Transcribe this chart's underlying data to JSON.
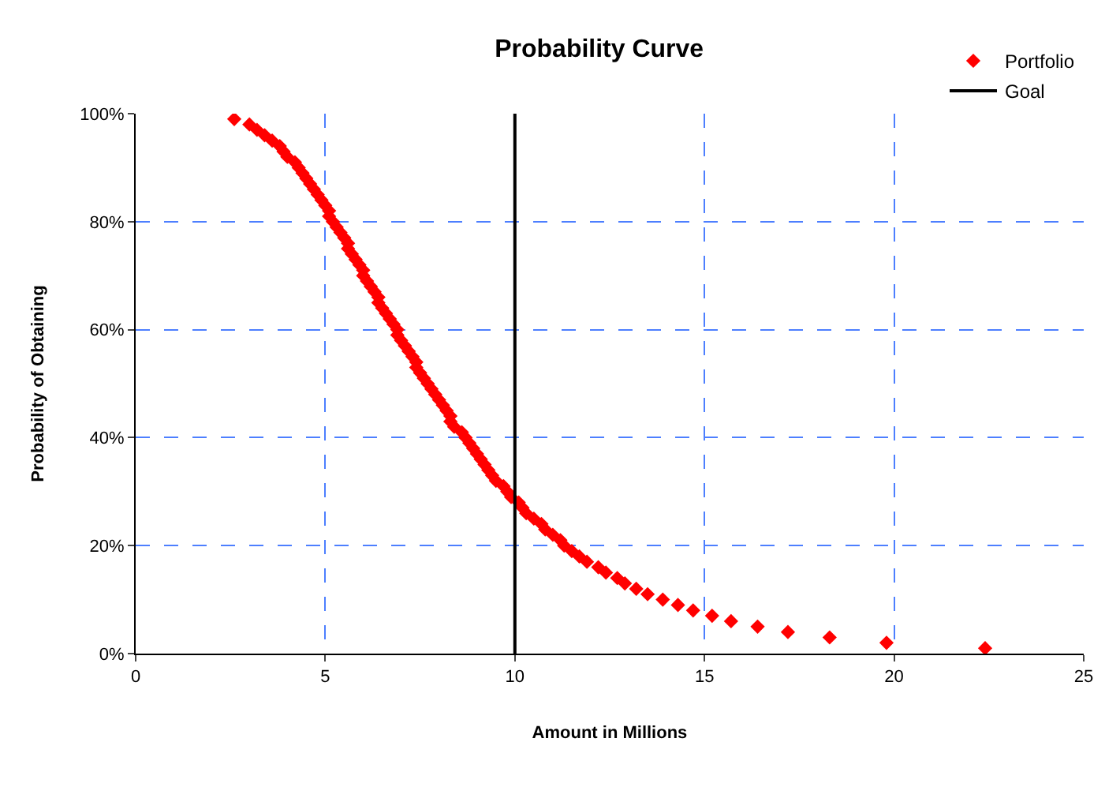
{
  "chart_data": {
    "type": "scatter",
    "title": "Probability Curve",
    "xlabel": "Amount in Millions",
    "ylabel": "Probability of Obtaining",
    "x": [
      2.6,
      3.0,
      3.2,
      3.4,
      3.6,
      3.8,
      3.9,
      4.0,
      4.2,
      4.3,
      4.4,
      4.5,
      4.6,
      4.7,
      4.8,
      4.9,
      5.0,
      5.1,
      5.1,
      5.2,
      5.3,
      5.4,
      5.5,
      5.6,
      5.6,
      5.7,
      5.8,
      5.9,
      6.0,
      6.0,
      6.1,
      6.2,
      6.3,
      6.4,
      6.4,
      6.5,
      6.6,
      6.7,
      6.8,
      6.9,
      6.9,
      7.0,
      7.1,
      7.2,
      7.3,
      7.4,
      7.4,
      7.5,
      7.6,
      7.7,
      7.8,
      7.9,
      8.0,
      8.1,
      8.2,
      8.3,
      8.3,
      8.4,
      8.6,
      8.7,
      8.8,
      8.9,
      9.0,
      9.1,
      9.2,
      9.3,
      9.4,
      9.5,
      9.7,
      9.8,
      9.9,
      10.1,
      10.2,
      10.3,
      10.5,
      10.7,
      10.8,
      11.0,
      11.2,
      11.3,
      11.5,
      11.7,
      11.9,
      12.2,
      12.4,
      12.7,
      12.9,
      13.2,
      13.5,
      13.9,
      14.3,
      14.7,
      15.2,
      15.7,
      16.4,
      17.2,
      18.3,
      19.8,
      22.4
    ],
    "series": [
      {
        "name": "Portfolio",
        "color": "#ff0000",
        "values": [
          99,
          98,
          97,
          96,
          95,
          94,
          93,
          92,
          91,
          90,
          89,
          88,
          87,
          86,
          85,
          84,
          83,
          82,
          81,
          80,
          79,
          78,
          77,
          76,
          75,
          74,
          73,
          72,
          71,
          70,
          69,
          68,
          67,
          66,
          65,
          64,
          63,
          62,
          61,
          60,
          59,
          58,
          57,
          56,
          55,
          54,
          53,
          52,
          51,
          50,
          49,
          48,
          47,
          46,
          45,
          44,
          43,
          42,
          41,
          40,
          39,
          38,
          37,
          36,
          35,
          34,
          33,
          32,
          31,
          30,
          29,
          28,
          27,
          26,
          25,
          24,
          23,
          22,
          21,
          20,
          19,
          18,
          17,
          16,
          15,
          14,
          13,
          12,
          11,
          10,
          9,
          8,
          7,
          6,
          5,
          4,
          3,
          2,
          1
        ]
      }
    ],
    "xlim": [
      0,
      25
    ],
    "xticks": [
      0,
      5,
      10,
      15,
      20,
      25
    ],
    "ylim": [
      0,
      100
    ],
    "yticks": [
      {
        "value": 0,
        "label": "0%"
      },
      {
        "value": 20,
        "label": "20%"
      },
      {
        "value": 40,
        "label": "40%"
      },
      {
        "value": 60,
        "label": "60%"
      },
      {
        "value": 80,
        "label": "80%"
      },
      {
        "value": 100,
        "label": "100%"
      }
    ],
    "ref_lines": [
      {
        "axis": "x",
        "value": 10,
        "label": "Goal",
        "color": "#000000",
        "line_style": "solid"
      }
    ],
    "grid": true,
    "legend": "top right",
    "marker": "diamond"
  }
}
